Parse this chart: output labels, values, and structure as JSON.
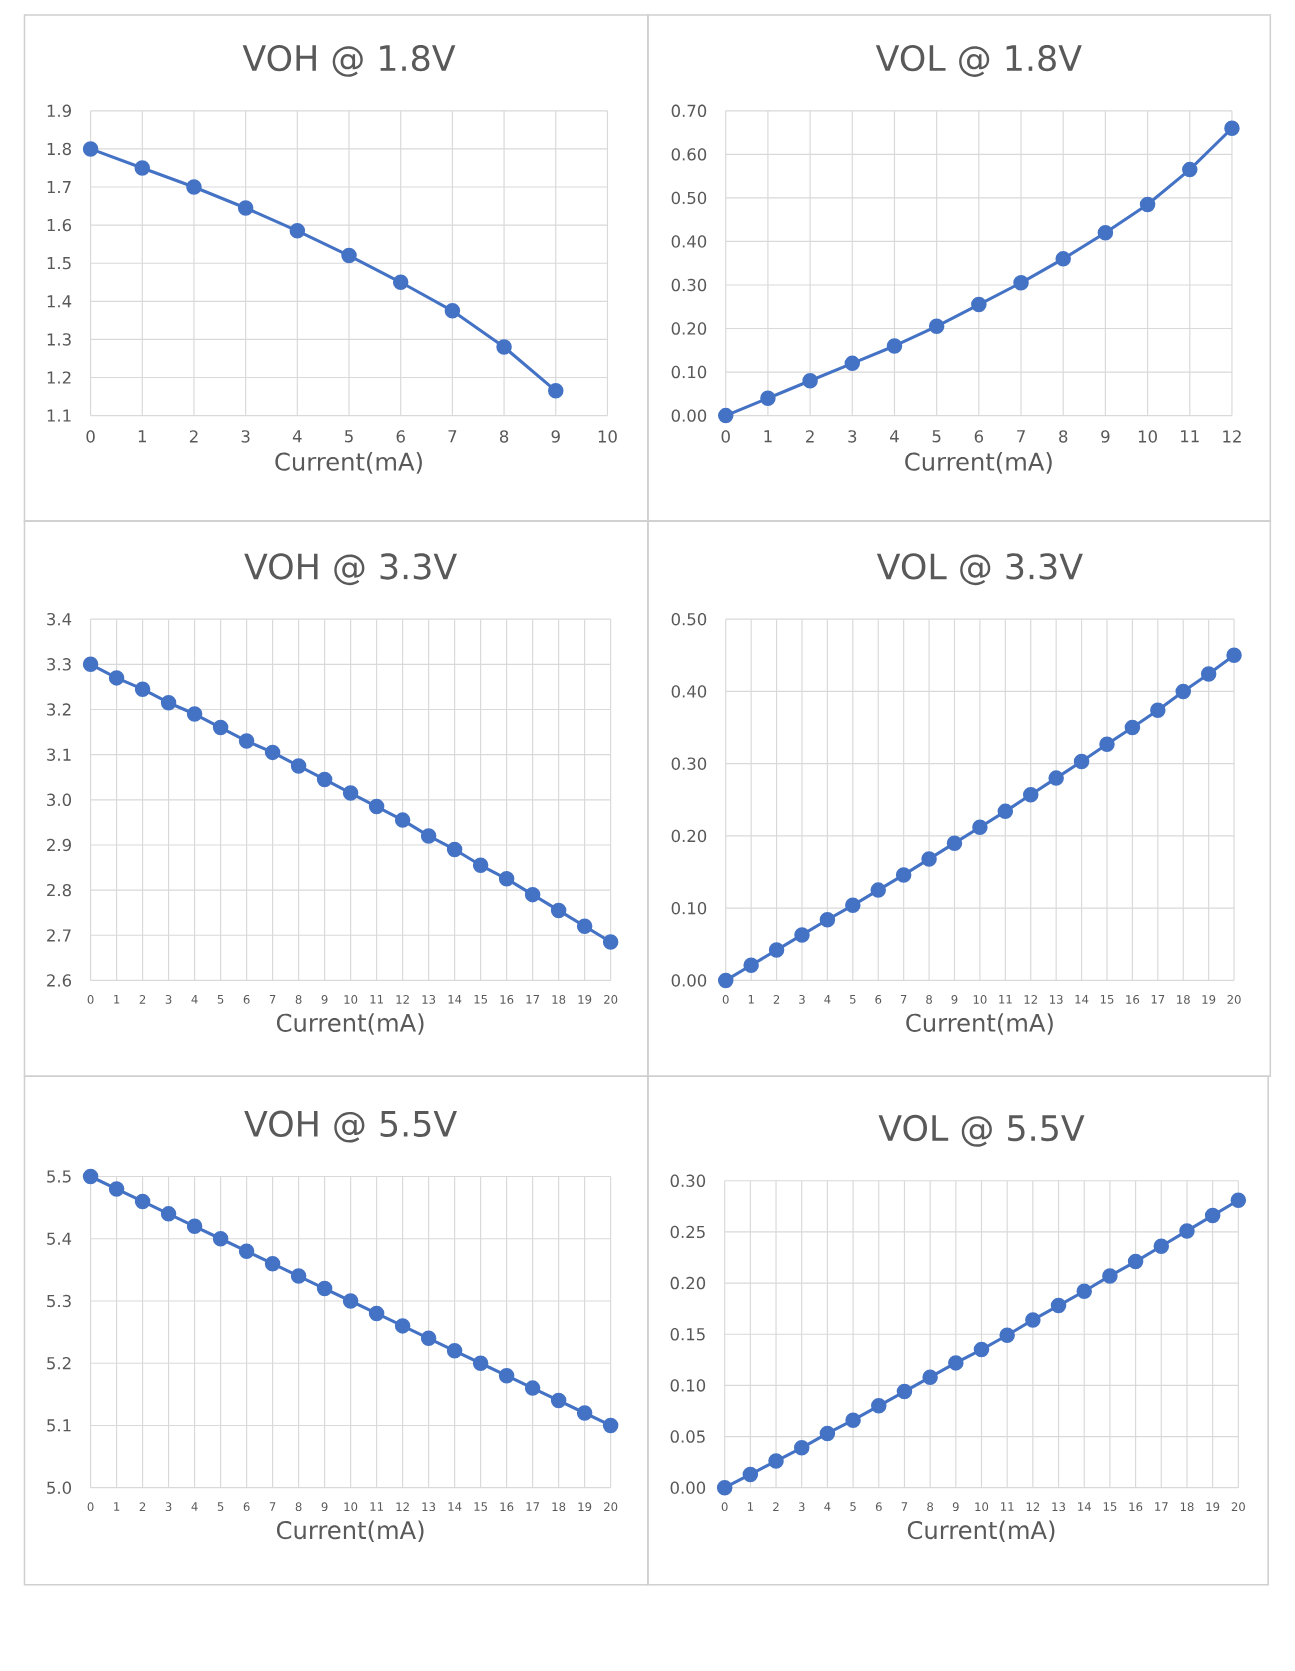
{
  "chart_data": [
    {
      "type": "line",
      "title": "VOH @ 1.8V",
      "xlabel": "Current(mA)",
      "color": "#4472c4",
      "marker": "circle",
      "line_style": "solid",
      "grid": true,
      "xlim": [
        0,
        10
      ],
      "xticks": [
        0,
        1,
        2,
        3,
        4,
        5,
        6,
        7,
        8,
        9,
        10
      ],
      "ylim": [
        1.1,
        1.9
      ],
      "yticks": [
        1.1,
        1.2,
        1.3,
        1.4,
        1.5,
        1.6,
        1.7,
        1.8,
        1.9
      ],
      "x": [
        0,
        1,
        2,
        3,
        4,
        5,
        6,
        7,
        8,
        9
      ],
      "values": [
        1.8,
        1.75,
        1.7,
        1.645,
        1.585,
        1.52,
        1.45,
        1.375,
        1.28,
        1.165
      ]
    },
    {
      "type": "line",
      "title": "VOL @ 1.8V",
      "xlabel": "Current(mA)",
      "color": "#4472c4",
      "marker": "circle",
      "line_style": "solid",
      "grid": true,
      "xlim": [
        0,
        12
      ],
      "xticks": [
        0,
        1,
        2,
        3,
        4,
        5,
        6,
        7,
        8,
        9,
        10,
        11,
        12
      ],
      "ylim": [
        0,
        0.7
      ],
      "yticks": [
        {
          "value": 0,
          "label": "0.00"
        },
        {
          "value": 0.1,
          "label": "0.10"
        },
        {
          "value": 0.2,
          "label": "0.20"
        },
        {
          "value": 0.3,
          "label": "0.30"
        },
        {
          "value": 0.4,
          "label": "0.40"
        },
        {
          "value": 0.5,
          "label": "0.50"
        },
        {
          "value": 0.6,
          "label": "0.60"
        },
        {
          "value": 0.7,
          "label": "0.70"
        }
      ],
      "x": [
        0,
        1,
        2,
        3,
        4,
        5,
        6,
        7,
        8,
        9,
        10,
        11,
        12
      ],
      "values": [
        0,
        0.04,
        0.08,
        0.12,
        0.16,
        0.205,
        0.255,
        0.305,
        0.36,
        0.42,
        0.485,
        0.565,
        0.66
      ]
    },
    {
      "type": "line",
      "title": "VOH @ 3.3V",
      "xlabel": "Current(mA)",
      "color": "#4472c4",
      "marker": "circle",
      "line_style": "solid",
      "grid": true,
      "xlim": [
        0,
        20
      ],
      "xticks": [
        0,
        1,
        2,
        3,
        4,
        5,
        6,
        7,
        8,
        9,
        10,
        11,
        12,
        13,
        14,
        15,
        16,
        17,
        18,
        19,
        20
      ],
      "ylim": [
        2.6,
        3.4
      ],
      "yticks": [
        2.6,
        2.7,
        2.8,
        2.9,
        {
          "value": 3,
          "label": "3.0"
        },
        3.1,
        3.2,
        3.3,
        3.4
      ],
      "x": [
        0,
        1,
        2,
        3,
        4,
        5,
        6,
        7,
        8,
        9,
        10,
        11,
        12,
        13,
        14,
        15,
        16,
        17,
        18,
        19,
        20
      ],
      "values": [
        3.3,
        3.27,
        3.245,
        3.215,
        3.19,
        3.16,
        3.13,
        3.105,
        3.075,
        3.045,
        3.015,
        2.985,
        2.955,
        2.92,
        2.89,
        2.855,
        2.825,
        2.79,
        2.755,
        2.72,
        2.685
      ]
    },
    {
      "type": "line",
      "title": "VOL @ 3.3V",
      "xlabel": "Current(mA)",
      "color": "#4472c4",
      "marker": "circle",
      "line_style": "solid",
      "grid": true,
      "xlim": [
        0,
        20
      ],
      "xticks": [
        0,
        1,
        2,
        3,
        4,
        5,
        6,
        7,
        8,
        9,
        10,
        11,
        12,
        13,
        14,
        15,
        16,
        17,
        18,
        19,
        20
      ],
      "ylim": [
        0,
        0.5
      ],
      "yticks": [
        {
          "value": 0,
          "label": "0.00"
        },
        {
          "value": 0.1,
          "label": "0.10"
        },
        {
          "value": 0.2,
          "label": "0.20"
        },
        {
          "value": 0.3,
          "label": "0.30"
        },
        {
          "value": 0.4,
          "label": "0.40"
        },
        {
          "value": 0.5,
          "label": "0.50"
        }
      ],
      "x": [
        0,
        1,
        2,
        3,
        4,
        5,
        6,
        7,
        8,
        9,
        10,
        11,
        12,
        13,
        14,
        15,
        16,
        17,
        18,
        19,
        20
      ],
      "values": [
        0,
        0.021,
        0.042,
        0.063,
        0.084,
        0.104,
        0.125,
        0.146,
        0.168,
        0.19,
        0.212,
        0.234,
        0.257,
        0.28,
        0.303,
        0.327,
        0.35,
        0.374,
        0.4,
        0.424,
        0.45
      ]
    },
    {
      "type": "line",
      "title": "VOH @ 5.5V",
      "xlabel": "Current(mA)",
      "color": "#4472c4",
      "marker": "circle",
      "line_style": "solid",
      "grid": true,
      "xlim": [
        0,
        20
      ],
      "xticks": [
        0,
        1,
        2,
        3,
        4,
        5,
        6,
        7,
        8,
        9,
        10,
        11,
        12,
        13,
        14,
        15,
        16,
        17,
        18,
        19,
        20
      ],
      "ylim": [
        5.0,
        5.5
      ],
      "yticks": [
        {
          "value": 5,
          "label": "5.0"
        },
        5.1,
        5.2,
        5.3,
        5.4,
        5.5
      ],
      "x": [
        0,
        1,
        2,
        3,
        4,
        5,
        6,
        7,
        8,
        9,
        10,
        11,
        12,
        13,
        14,
        15,
        16,
        17,
        18,
        19,
        20
      ],
      "values": [
        5.5,
        5.48,
        5.46,
        5.44,
        5.42,
        5.4,
        5.38,
        5.36,
        5.34,
        5.32,
        5.3,
        5.28,
        5.26,
        5.24,
        5.22,
        5.2,
        5.18,
        5.16,
        5.14,
        5.12,
        5.1
      ]
    },
    {
      "type": "line",
      "title": "VOL @ 5.5V",
      "xlabel": "Current(mA)",
      "color": "#4472c4",
      "marker": "circle",
      "line_style": "solid",
      "grid": true,
      "xlim": [
        0,
        20
      ],
      "xticks": [
        0,
        1,
        2,
        3,
        4,
        5,
        6,
        7,
        8,
        9,
        10,
        11,
        12,
        13,
        14,
        15,
        16,
        17,
        18,
        19,
        20
      ],
      "ylim": [
        0,
        0.3
      ],
      "yticks": [
        {
          "value": 0,
          "label": "0.00"
        },
        {
          "value": 0.05,
          "label": "0.05"
        },
        {
          "value": 0.1,
          "label": "0.10"
        },
        {
          "value": 0.15,
          "label": "0.15"
        },
        {
          "value": 0.2,
          "label": "0.20"
        },
        {
          "value": 0.25,
          "label": "0.25"
        },
        {
          "value": 0.3,
          "label": "0.30"
        }
      ],
      "x": [
        0,
        1,
        2,
        3,
        4,
        5,
        6,
        7,
        8,
        9,
        10,
        11,
        12,
        13,
        14,
        15,
        16,
        17,
        18,
        19,
        20
      ],
      "values": [
        0,
        0.013,
        0.026,
        0.039,
        0.053,
        0.066,
        0.08,
        0.094,
        0.108,
        0.122,
        0.135,
        0.149,
        0.164,
        0.178,
        0.192,
        0.207,
        0.221,
        0.236,
        0.251,
        0.266,
        0.281
      ]
    }
  ]
}
